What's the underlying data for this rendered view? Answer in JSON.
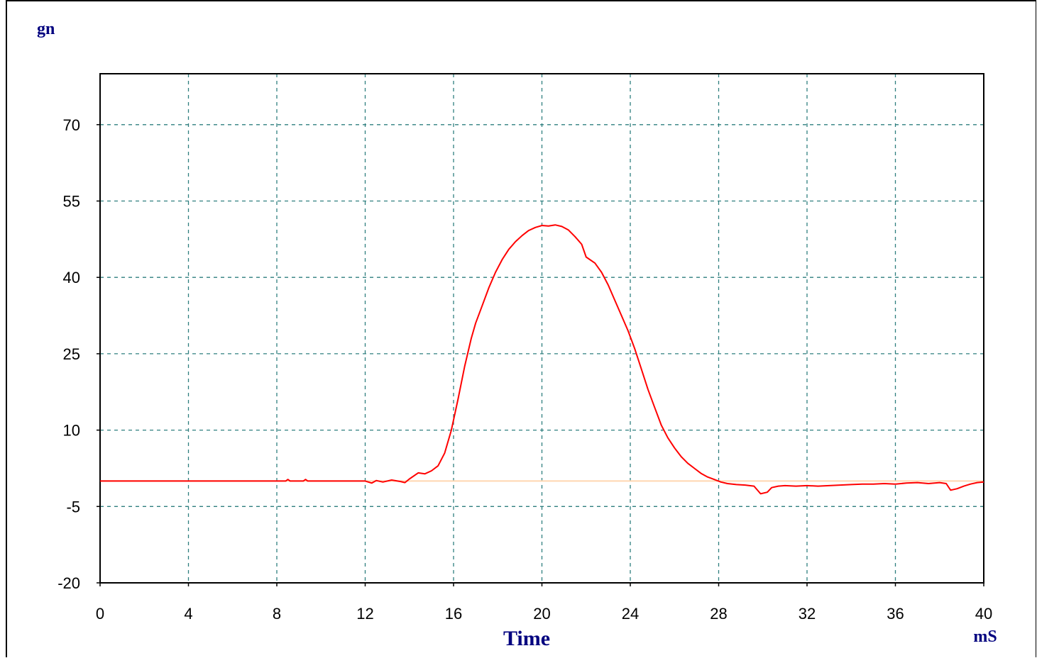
{
  "chart_data": {
    "type": "line",
    "y_unit_label": "gn",
    "xlabel": "Time",
    "x_unit_label": "mS",
    "xlim": [
      0,
      40
    ],
    "ylim": [
      -20,
      80
    ],
    "x_ticks": [
      "0",
      "4",
      "8",
      "12",
      "16",
      "20",
      "24",
      "28",
      "32",
      "36",
      "40"
    ],
    "y_ticks": [
      "70",
      "55",
      "40",
      "25",
      "10",
      "-5",
      "-20"
    ],
    "grid": true,
    "baseline": 0,
    "series": [
      {
        "color": "#ff0000",
        "x": [
          0,
          8.4,
          8.5,
          8.6,
          9.2,
          9.3,
          9.4,
          10.0,
          12.0,
          12.3,
          12.5,
          12.8,
          13.2,
          13.6,
          13.8,
          14.0,
          14.4,
          14.7,
          15.0,
          15.3,
          15.6,
          15.9,
          16.2,
          16.5,
          16.8,
          17.0,
          17.3,
          17.6,
          17.9,
          18.2,
          18.5,
          18.8,
          19.1,
          19.4,
          19.7,
          20.0,
          20.3,
          20.6,
          20.9,
          21.2,
          21.5,
          21.8,
          22.0,
          22.4,
          22.7,
          23.0,
          23.3,
          23.6,
          23.9,
          24.2,
          24.5,
          24.8,
          25.1,
          25.4,
          25.7,
          26.0,
          26.3,
          26.6,
          26.9,
          27.2,
          27.5,
          27.8,
          28.1,
          28.4,
          28.8,
          29.2,
          29.6,
          29.9,
          30.2,
          30.4,
          30.7,
          31.0,
          31.5,
          32.0,
          32.5,
          33.0,
          33.5,
          34.0,
          34.5,
          35.0,
          35.5,
          36.0,
          36.5,
          37.0,
          37.5,
          38.0,
          38.3,
          38.5,
          38.8,
          39.1,
          39.4,
          39.7,
          40.0
        ],
        "y": [
          0,
          0,
          0.3,
          0,
          0,
          0.3,
          0,
          0,
          0,
          -0.4,
          0.1,
          -0.2,
          0.2,
          -0.1,
          -0.3,
          0.4,
          1.6,
          1.4,
          2.0,
          3.0,
          5.5,
          10.0,
          16.0,
          22.5,
          28.0,
          31.0,
          34.5,
          38.0,
          41.0,
          43.5,
          45.5,
          47.0,
          48.2,
          49.2,
          49.8,
          50.2,
          50.1,
          50.3,
          50.0,
          49.3,
          48.0,
          46.5,
          44.0,
          42.8,
          41.0,
          38.5,
          35.5,
          32.5,
          29.5,
          26.0,
          22.0,
          18.0,
          14.5,
          11.0,
          8.5,
          6.5,
          4.8,
          3.5,
          2.5,
          1.5,
          0.8,
          0.3,
          -0.2,
          -0.5,
          -0.7,
          -0.8,
          -1.0,
          -2.5,
          -2.2,
          -1.3,
          -1.0,
          -0.9,
          -1.0,
          -0.9,
          -1.0,
          -0.9,
          -0.8,
          -0.7,
          -0.6,
          -0.6,
          -0.5,
          -0.6,
          -0.4,
          -0.3,
          -0.5,
          -0.3,
          -0.5,
          -1.8,
          -1.5,
          -1.0,
          -0.6,
          -0.3,
          -0.2
        ]
      }
    ]
  }
}
